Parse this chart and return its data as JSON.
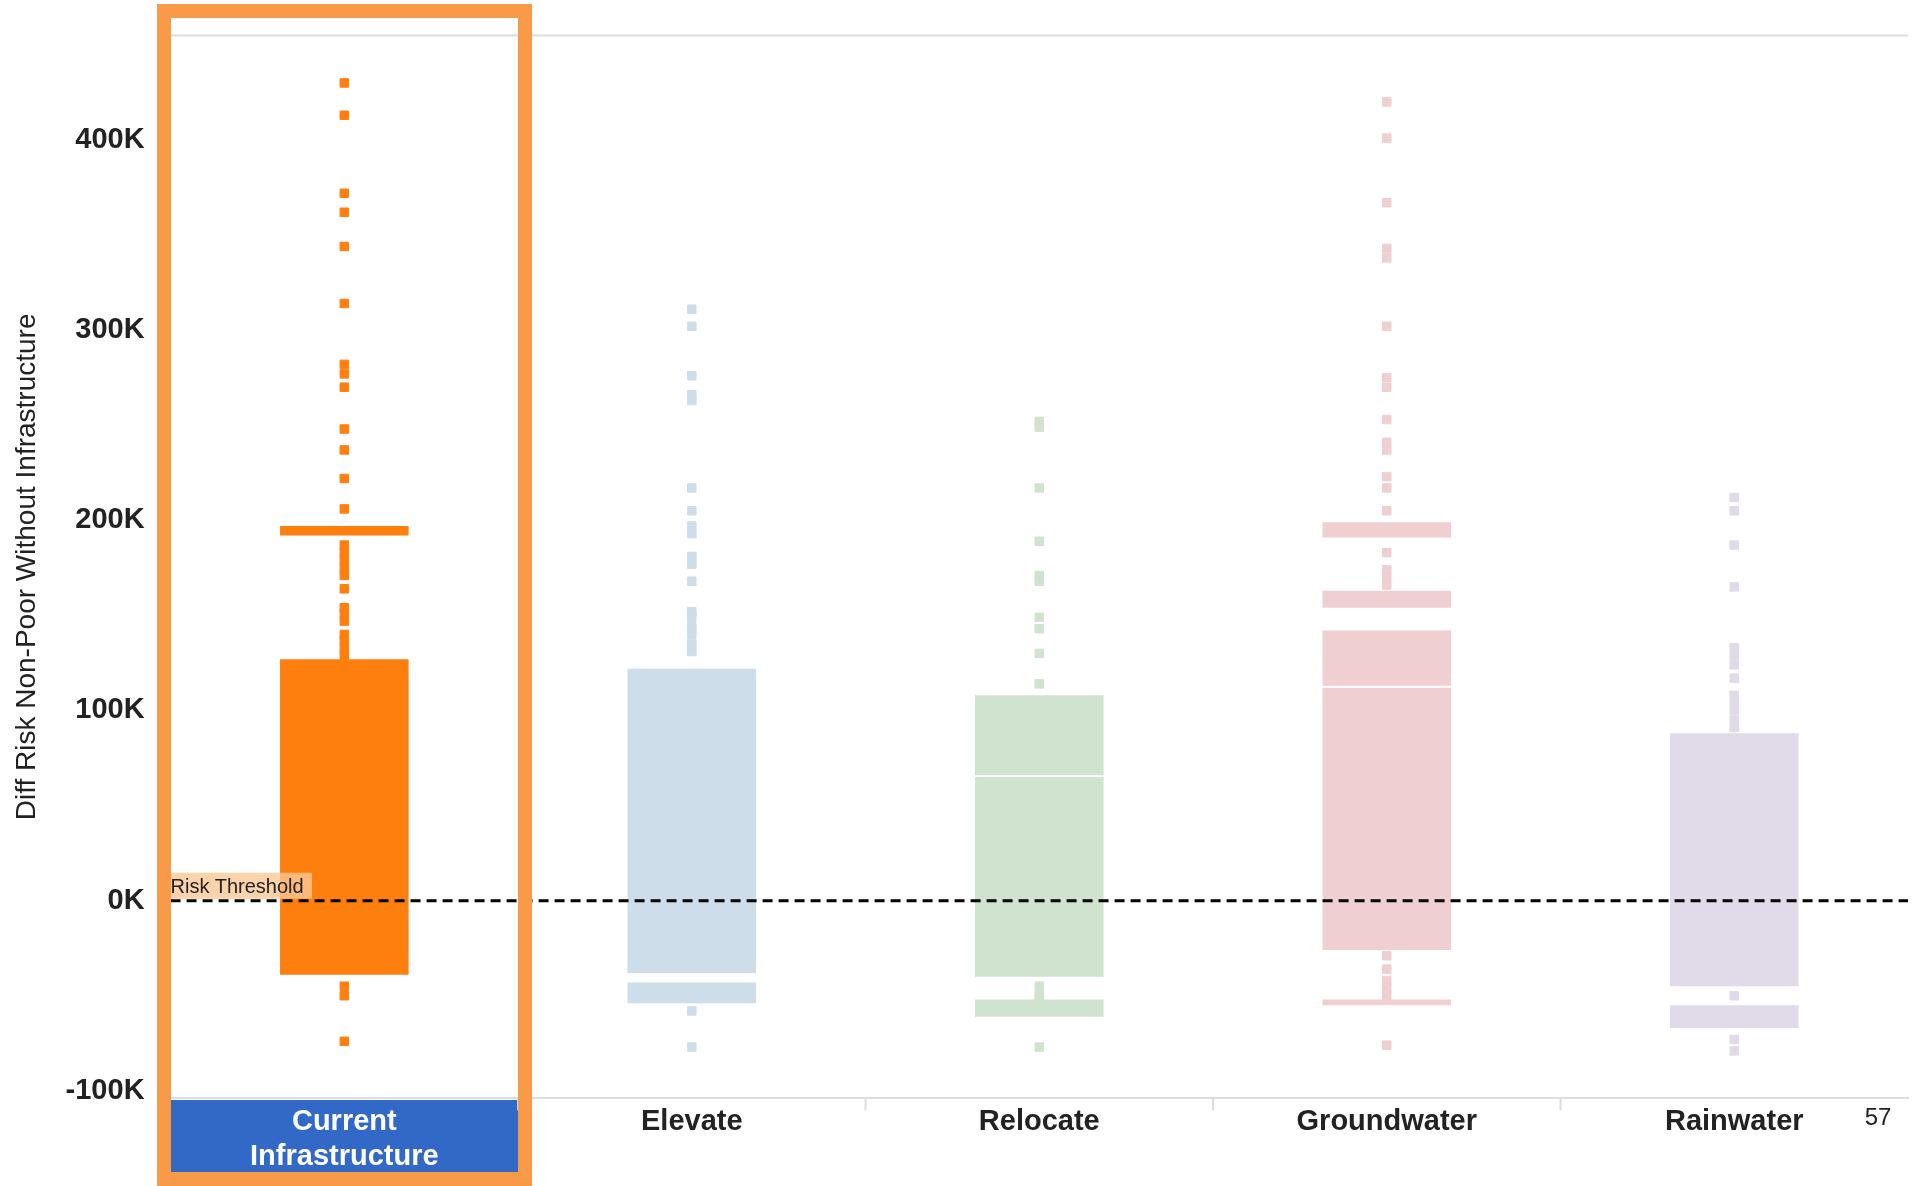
{
  "chart_data": {
    "type": "scatter",
    "ylabel": "Diff Risk Non-Poor Without Infrastructure",
    "categories": [
      "Current Infrastructure",
      "Elevate",
      "Relocate",
      "Groundwater",
      "Rainwater"
    ],
    "ylim": [
      -104,
      455
    ],
    "yticks": [
      {
        "value": -100,
        "label": "-100K"
      },
      {
        "value": 0,
        "label": "0K"
      },
      {
        "value": 100,
        "label": "100K"
      },
      {
        "value": 200,
        "label": "200K"
      },
      {
        "value": 300,
        "label": "300K"
      },
      {
        "value": 400,
        "label": "400K"
      }
    ],
    "grid": false,
    "legend": false,
    "marker": "square",
    "ref_lines": [
      {
        "axis": "y",
        "value": 0,
        "label": "Risk Threshold",
        "color": "#000000",
        "line_style": "dashed"
      }
    ],
    "annotations": [
      "57"
    ],
    "series": [
      {
        "type": "bar",
        "colors": [
          "#ff7f0e",
          "#cddde9",
          "#cfe3cf",
          "#efcfd1",
          "#e1dbe9"
        ],
        "base": [
          -39,
          -38,
          -40,
          -26,
          -45
        ],
        "values": [
          166,
          160,
          105,
          138,
          133
        ]
      },
      {
        "type": "bar",
        "colors": [
          "#ff7f0e",
          "#cddde9",
          "#cfe3cf",
          "#efcfd1",
          "#e1dbe9"
        ],
        "base": [
          192,
          -54,
          66,
          113,
          -67
        ],
        "values": [
          5,
          11,
          42,
          29,
          12
        ]
      },
      {
        "type": "bar",
        "colors": [
          "#ff7f0e",
          "#cddde9",
          "#cfe3cf",
          "#efcfd1",
          "#e1dbe9"
        ],
        "base": [
          null,
          null,
          -61,
          154,
          null
        ],
        "values": [
          null,
          null,
          9,
          9,
          null
        ]
      },
      {
        "type": "bar",
        "colors": [
          "#ff7f0e",
          "#cddde9",
          "#cfe3cf",
          "#efcfd1",
          "#e1dbe9"
        ],
        "base": [
          null,
          null,
          null,
          191,
          null
        ],
        "values": [
          null,
          null,
          null,
          8,
          null
        ]
      },
      {
        "type": "bar",
        "colors": [
          "#ff7f0e",
          "#cddde9",
          "#cfe3cf",
          "#efcfd1",
          "#e1dbe9"
        ],
        "base": [
          null,
          null,
          null,
          -55,
          null
        ],
        "values": [
          null,
          null,
          null,
          3,
          null
        ]
      },
      {
        "type": "scatter",
        "color": "#ff7f0e",
        "x": [
          "Current Infrastructure",
          "Current Infrastructure",
          "Current Infrastructure",
          "Current Infrastructure",
          "Current Infrastructure",
          "Current Infrastructure",
          "Current Infrastructure",
          "Current Infrastructure",
          "Current Infrastructure",
          "Current Infrastructure",
          "Current Infrastructure",
          "Current Infrastructure",
          "Current Infrastructure",
          "Current Infrastructure",
          "Current Infrastructure",
          "Current Infrastructure",
          "Current Infrastructure",
          "Current Infrastructure",
          "Current Infrastructure",
          "Current Infrastructure",
          "Current Infrastructure",
          "Current Infrastructure",
          "Current Infrastructure",
          "Current Infrastructure",
          "Current Infrastructure",
          "Current Infrastructure",
          "Current Infrastructure",
          "Current Infrastructure",
          "Current Infrastructure"
        ],
        "values": [
          430,
          413,
          372,
          362,
          344,
          314,
          282,
          277,
          270,
          248,
          237,
          222,
          206,
          187,
          183,
          179,
          175,
          171,
          164,
          154,
          151,
          147,
          140,
          137,
          133,
          129,
          -45,
          -50,
          -74
        ]
      },
      {
        "type": "scatter",
        "color": "#cddde9",
        "x": [
          "Elevate",
          "Elevate",
          "Elevate",
          "Elevate",
          "Elevate",
          "Elevate",
          "Elevate",
          "Elevate",
          "Elevate",
          "Elevate",
          "Elevate",
          "Elevate",
          "Elevate",
          "Elevate",
          "Elevate",
          "Elevate",
          "Elevate",
          "Elevate",
          "Elevate",
          "Elevate"
        ],
        "values": [
          311,
          302,
          276,
          266,
          263,
          217,
          205,
          197,
          193,
          181,
          177,
          168,
          152,
          149,
          144,
          140,
          135,
          131,
          -58,
          -77
        ]
      },
      {
        "type": "scatter",
        "color": "#cfe3cf",
        "x": [
          "Relocate",
          "Relocate",
          "Relocate",
          "Relocate",
          "Relocate",
          "Relocate",
          "Relocate",
          "Relocate",
          "Relocate",
          "Relocate",
          "Relocate",
          "Relocate",
          "Relocate"
        ],
        "values": [
          252,
          249,
          217,
          189,
          171,
          168,
          149,
          143,
          130,
          114,
          -45,
          -50,
          -77
        ]
      },
      {
        "type": "scatter",
        "color": "#efcfd1",
        "x": [
          "Groundwater",
          "Groundwater",
          "Groundwater",
          "Groundwater",
          "Groundwater",
          "Groundwater",
          "Groundwater",
          "Groundwater",
          "Groundwater",
          "Groundwater",
          "Groundwater",
          "Groundwater",
          "Groundwater",
          "Groundwater",
          "Groundwater",
          "Groundwater",
          "Groundwater",
          "Groundwater",
          "Groundwater",
          "Groundwater",
          "Groundwater",
          "Groundwater",
          "Groundwater",
          "Groundwater"
        ],
        "values": [
          420,
          401,
          367,
          343,
          338,
          302,
          275,
          270,
          253,
          241,
          237,
          223,
          217,
          205,
          183,
          174,
          170,
          166,
          -29,
          -36,
          -42,
          -46,
          -50,
          -76
        ]
      },
      {
        "type": "scatter",
        "color": "#e1dbe9",
        "x": [
          "Rainwater",
          "Rainwater",
          "Rainwater",
          "Rainwater",
          "Rainwater",
          "Rainwater",
          "Rainwater",
          "Rainwater",
          "Rainwater",
          "Rainwater",
          "Rainwater",
          "Rainwater",
          "Rainwater",
          "Rainwater",
          "Rainwater",
          "Rainwater"
        ],
        "values": [
          212,
          205,
          187,
          165,
          133,
          129,
          124,
          117,
          108,
          104,
          100,
          95,
          91,
          -50,
          -73,
          -79
        ]
      }
    ]
  }
}
